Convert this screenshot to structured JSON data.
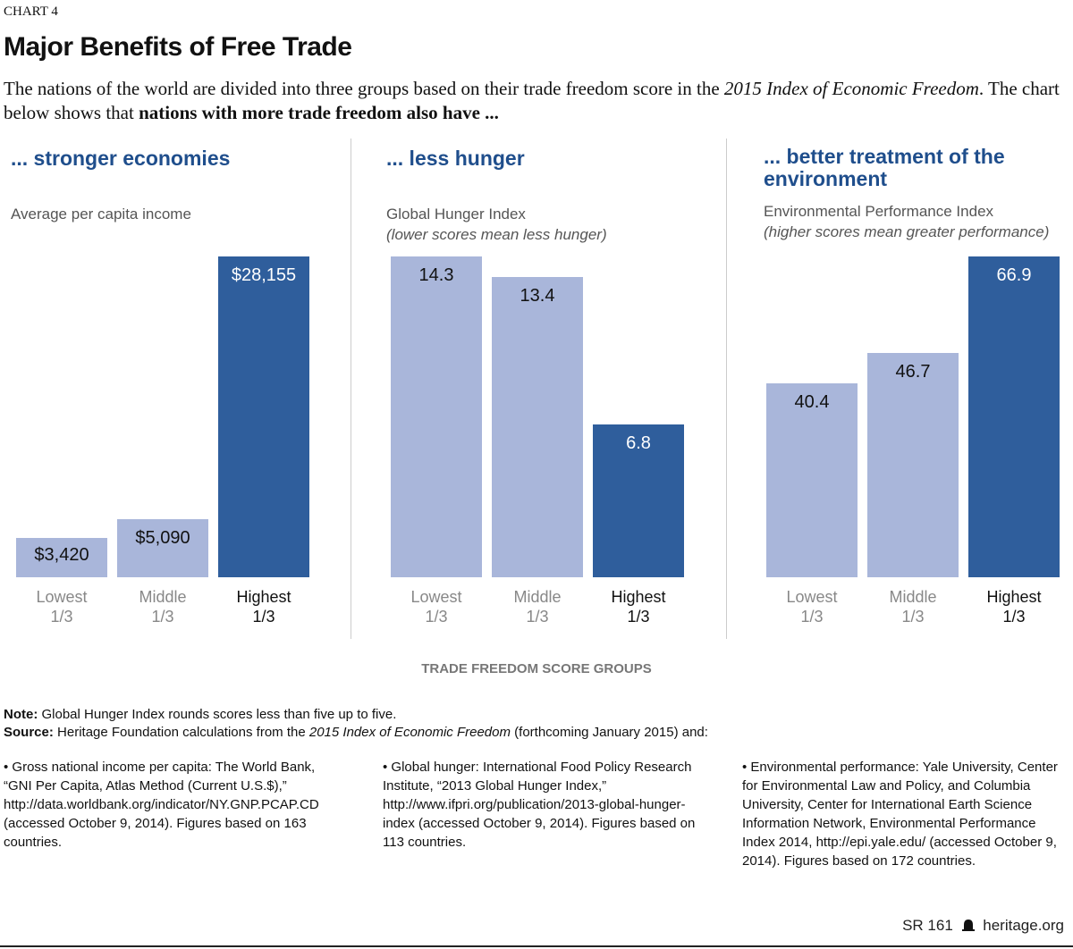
{
  "header": {
    "kicker": "CHART 4",
    "title": "Major Benefits of Free Trade",
    "subtitle_parts": [
      "The nations of the world are divided into three groups based on their trade freedom score in the ",
      "2015 Index of Economic Freedom",
      ". The chart below shows that ",
      "nations with more trade freedom also have ..."
    ]
  },
  "chart_data": [
    {
      "type": "bar",
      "title": "... stronger economies",
      "ylabel": "Average per capita income",
      "note": "",
      "categories": [
        "Lowest 1/3",
        "Middle 1/3",
        "Highest 1/3"
      ],
      "values": [
        3420,
        5090,
        28155
      ],
      "labels": [
        "$3,420",
        "$5,090",
        "$28,155"
      ]
    },
    {
      "type": "bar",
      "title": "... less hunger",
      "ylabel": "Global Hunger Index",
      "note": "(lower scores mean less hunger)",
      "categories": [
        "Lowest 1/3",
        "Middle 1/3",
        "Highest 1/3"
      ],
      "values": [
        14.3,
        13.4,
        6.8
      ],
      "labels": [
        "14.3",
        "13.4",
        "6.8"
      ]
    },
    {
      "type": "bar",
      "title": "... better treatment of the environment",
      "ylabel": "Environmental Performance Index",
      "note": "(higher scores mean greater performance)",
      "categories": [
        "Lowest 1/3",
        "Middle 1/3",
        "Highest 1/3"
      ],
      "values": [
        40.4,
        46.7,
        66.9
      ],
      "labels": [
        "40.4",
        "46.7",
        "66.9"
      ]
    }
  ],
  "category_lines": [
    [
      "Lowest",
      "1/3"
    ],
    [
      "Middle",
      "1/3"
    ],
    [
      "Highest",
      "1/3"
    ]
  ],
  "xlabel": "TRADE FREEDOM SCORE GROUPS",
  "colors": {
    "light": "#a9b6da",
    "dark": "#2f5e9c",
    "heading": "#1f4e8c"
  },
  "notes": {
    "note_label": "Note:",
    "note": " Global Hunger Index rounds scores less than five up to five.",
    "source_label": "Source:",
    "source_a": " Heritage Foundation calculations from the ",
    "source_b": "2015 Index of Economic Freedom",
    "source_c": " (forthcoming January 2015) and:"
  },
  "sources": [
    "• Gross national income per capita: The World Bank, “GNI Per Capita, Atlas Method (Current U.S.$),” http://data.worldbank.org/indicator/NY.GNP.PCAP.CD (accessed October 9, 2014). Figures based on 163 countries.",
    "• Global hunger: International Food Policy Research Institute, “2013 Global Hunger Index,” http://www.ifpri.org/publication/2013-global-hunger-index (accessed October 9, 2014). Figures based on 113 countries.",
    "• Environmental performance: Yale University, Center for Environmental Law and Policy, and Columbia University, Center for International Earth Science Information Network, Environmental Performance Index 2014, http://epi.yale.edu/ (accessed October 9, 2014). Figures based on 172 countries."
  ],
  "footer": {
    "report": "SR 161",
    "site": "heritage.org",
    "icon": "liberty-bell-icon"
  }
}
